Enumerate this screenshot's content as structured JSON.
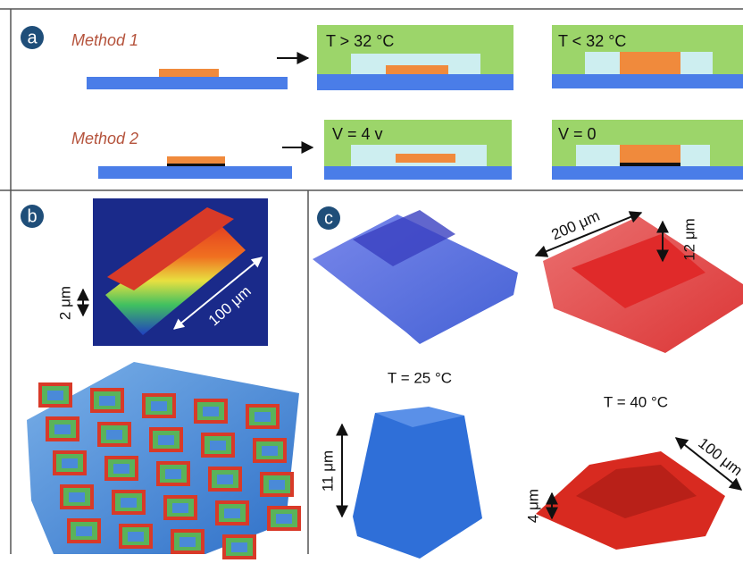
{
  "panel_a": {
    "label": "a",
    "method_1": {
      "name": "Method 1",
      "steps": [
        "T > 32 °C",
        "T < 32 °C"
      ]
    },
    "method_2": {
      "name": "Method 2",
      "steps": [
        "V = 4 v",
        "V = 0"
      ]
    }
  },
  "panel_b": {
    "label": "b",
    "height_label": "2 μm",
    "length_label": "100 μm"
  },
  "panel_c": {
    "label": "c",
    "width_label": "200 μm",
    "height_label_top": "12 μm",
    "temperatures": [
      "T = 25 °C",
      "T = 40 °C"
    ],
    "height_label_cube": "11 μm",
    "height_label_red": "4 μm",
    "side_label": "100 μm"
  }
}
